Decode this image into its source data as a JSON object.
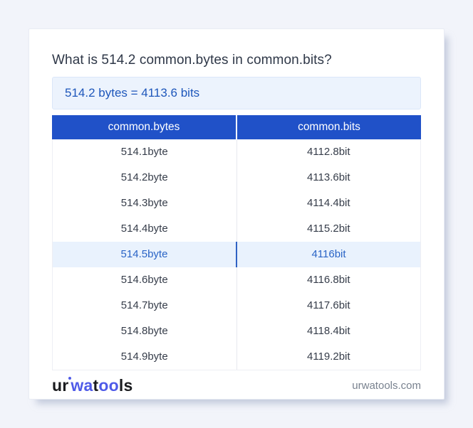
{
  "title": "What is 514.2 common.bytes in common.bits?",
  "result": {
    "text": "514.2 bytes = 4113.6 bits"
  },
  "table": {
    "columns": [
      "common.bytes",
      "common.bits"
    ],
    "rows": [
      {
        "bytes": "514.1byte",
        "bits": "4112.8bit",
        "highlight": false
      },
      {
        "bytes": "514.2byte",
        "bits": "4113.6bit",
        "highlight": false
      },
      {
        "bytes": "514.3byte",
        "bits": "4114.4bit",
        "highlight": false
      },
      {
        "bytes": "514.4byte",
        "bits": "4115.2bit",
        "highlight": false
      },
      {
        "bytes": "514.5byte",
        "bits": "4116bit",
        "highlight": true
      },
      {
        "bytes": "514.6byte",
        "bits": "4116.8bit",
        "highlight": false
      },
      {
        "bytes": "514.7byte",
        "bits": "4117.6bit",
        "highlight": false
      },
      {
        "bytes": "514.8byte",
        "bits": "4118.4bit",
        "highlight": false
      },
      {
        "bytes": "514.9byte",
        "bits": "4119.2bit",
        "highlight": false
      }
    ]
  },
  "footer": {
    "logo": {
      "ur": "ur",
      "wa": "wa",
      "t": "t",
      "oo": "oo",
      "ls": "ls"
    },
    "domain": "urwatools.com"
  },
  "colors": {
    "page_bg": "#f2f4fa",
    "header_blue": "#2051c8",
    "result_text_blue": "#1e57bb",
    "result_box_bg": "#ecf3fd",
    "highlight_row_bg": "#e9f2fd",
    "highlight_text_blue": "#2a64c6",
    "logo_blue": "#4f5be8",
    "domain_gray": "#79828f"
  }
}
